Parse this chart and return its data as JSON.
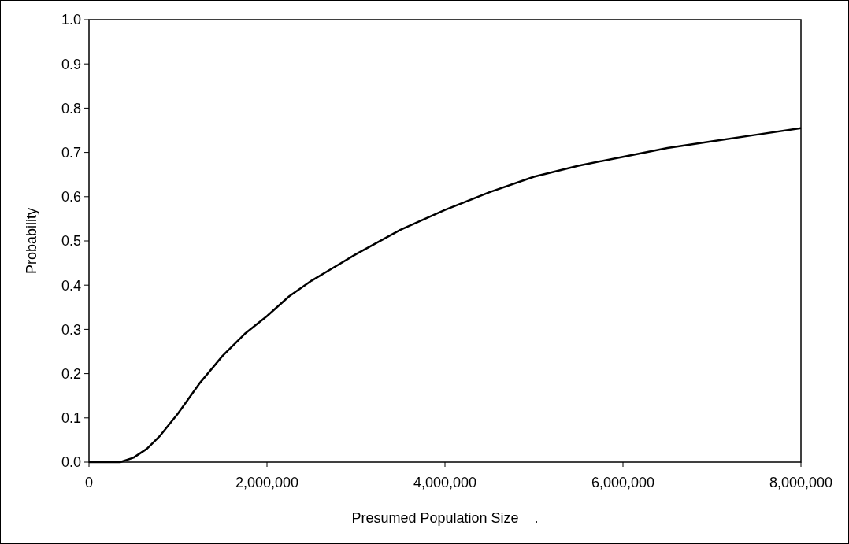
{
  "chart_data": {
    "type": "line",
    "xlabel": "Presumed Population Size    .",
    "ylabel": "Probability",
    "x": [
      0,
      200000,
      350000,
      500000,
      650000,
      800000,
      1000000,
      1250000,
      1500000,
      1750000,
      2000000,
      2250000,
      2500000,
      2750000,
      3000000,
      3500000,
      4000000,
      4500000,
      5000000,
      5500000,
      6000000,
      6500000,
      7000000,
      7500000,
      8000000
    ],
    "series": [
      {
        "color": "#000000",
        "values": [
          0,
          0,
          0,
          0.01,
          0.03,
          0.06,
          0.11,
          0.18,
          0.24,
          0.29,
          0.33,
          0.375,
          0.41,
          0.44,
          0.47,
          0.525,
          0.57,
          0.61,
          0.645,
          0.67,
          0.69,
          0.71,
          0.725,
          0.74,
          0.755
        ]
      }
    ],
    "xlim": [
      0,
      8000000
    ],
    "ylim": [
      0,
      1
    ],
    "xticks": [
      0,
      {
        "value": 2000000,
        "label": "2,000,000"
      },
      {
        "value": 4000000,
        "label": "4,000,000"
      },
      {
        "value": 6000000,
        "label": "6,000,000"
      },
      {
        "value": 8000000,
        "label": "8,000,000"
      }
    ],
    "yticks": [
      {
        "value": 0,
        "label": "0.0"
      },
      0.1,
      0.2,
      0.3,
      0.4,
      0.5,
      0.6,
      0.7,
      0.8,
      0.9,
      {
        "value": 1,
        "label": "1.0"
      }
    ],
    "marker": "none",
    "line_style": "solid",
    "grid": false
  }
}
